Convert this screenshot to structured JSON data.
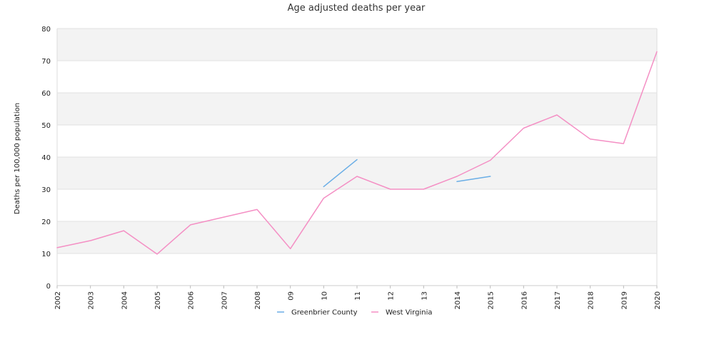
{
  "chart_data": {
    "type": "line",
    "title": "Age adjusted deaths per year",
    "xlabel": "",
    "ylabel": "Deaths per 100,000 population",
    "categories": [
      "2002",
      "2003",
      "2004",
      "2005",
      "2006",
      "2007",
      "2008",
      "09",
      "10",
      "11",
      "12",
      "13",
      "2014",
      "2015",
      "2016",
      "2017",
      "2018",
      "2019",
      "2020"
    ],
    "ylim": [
      0,
      80
    ],
    "yticks": [
      "0",
      "10",
      "20",
      "30",
      "40",
      "50",
      "60",
      "70",
      "80"
    ],
    "grid": "alternating horizontal bands",
    "legend_position": "bottom-center",
    "series": [
      {
        "name": "Greenbrier County",
        "color": "#6aaee6",
        "values": [
          null,
          null,
          null,
          null,
          null,
          null,
          null,
          null,
          30.8,
          39.2,
          null,
          null,
          32.4,
          34.0,
          null,
          null,
          null,
          null,
          null
        ]
      },
      {
        "name": "West Virginia",
        "color": "#f48fc4",
        "values": [
          11.8,
          14.0,
          17.1,
          9.8,
          18.9,
          21.3,
          23.7,
          11.5,
          27.2,
          34.0,
          30.0,
          30.0,
          34.0,
          39.0,
          49.0,
          53.1,
          45.6,
          44.2,
          72.8
        ]
      }
    ]
  }
}
